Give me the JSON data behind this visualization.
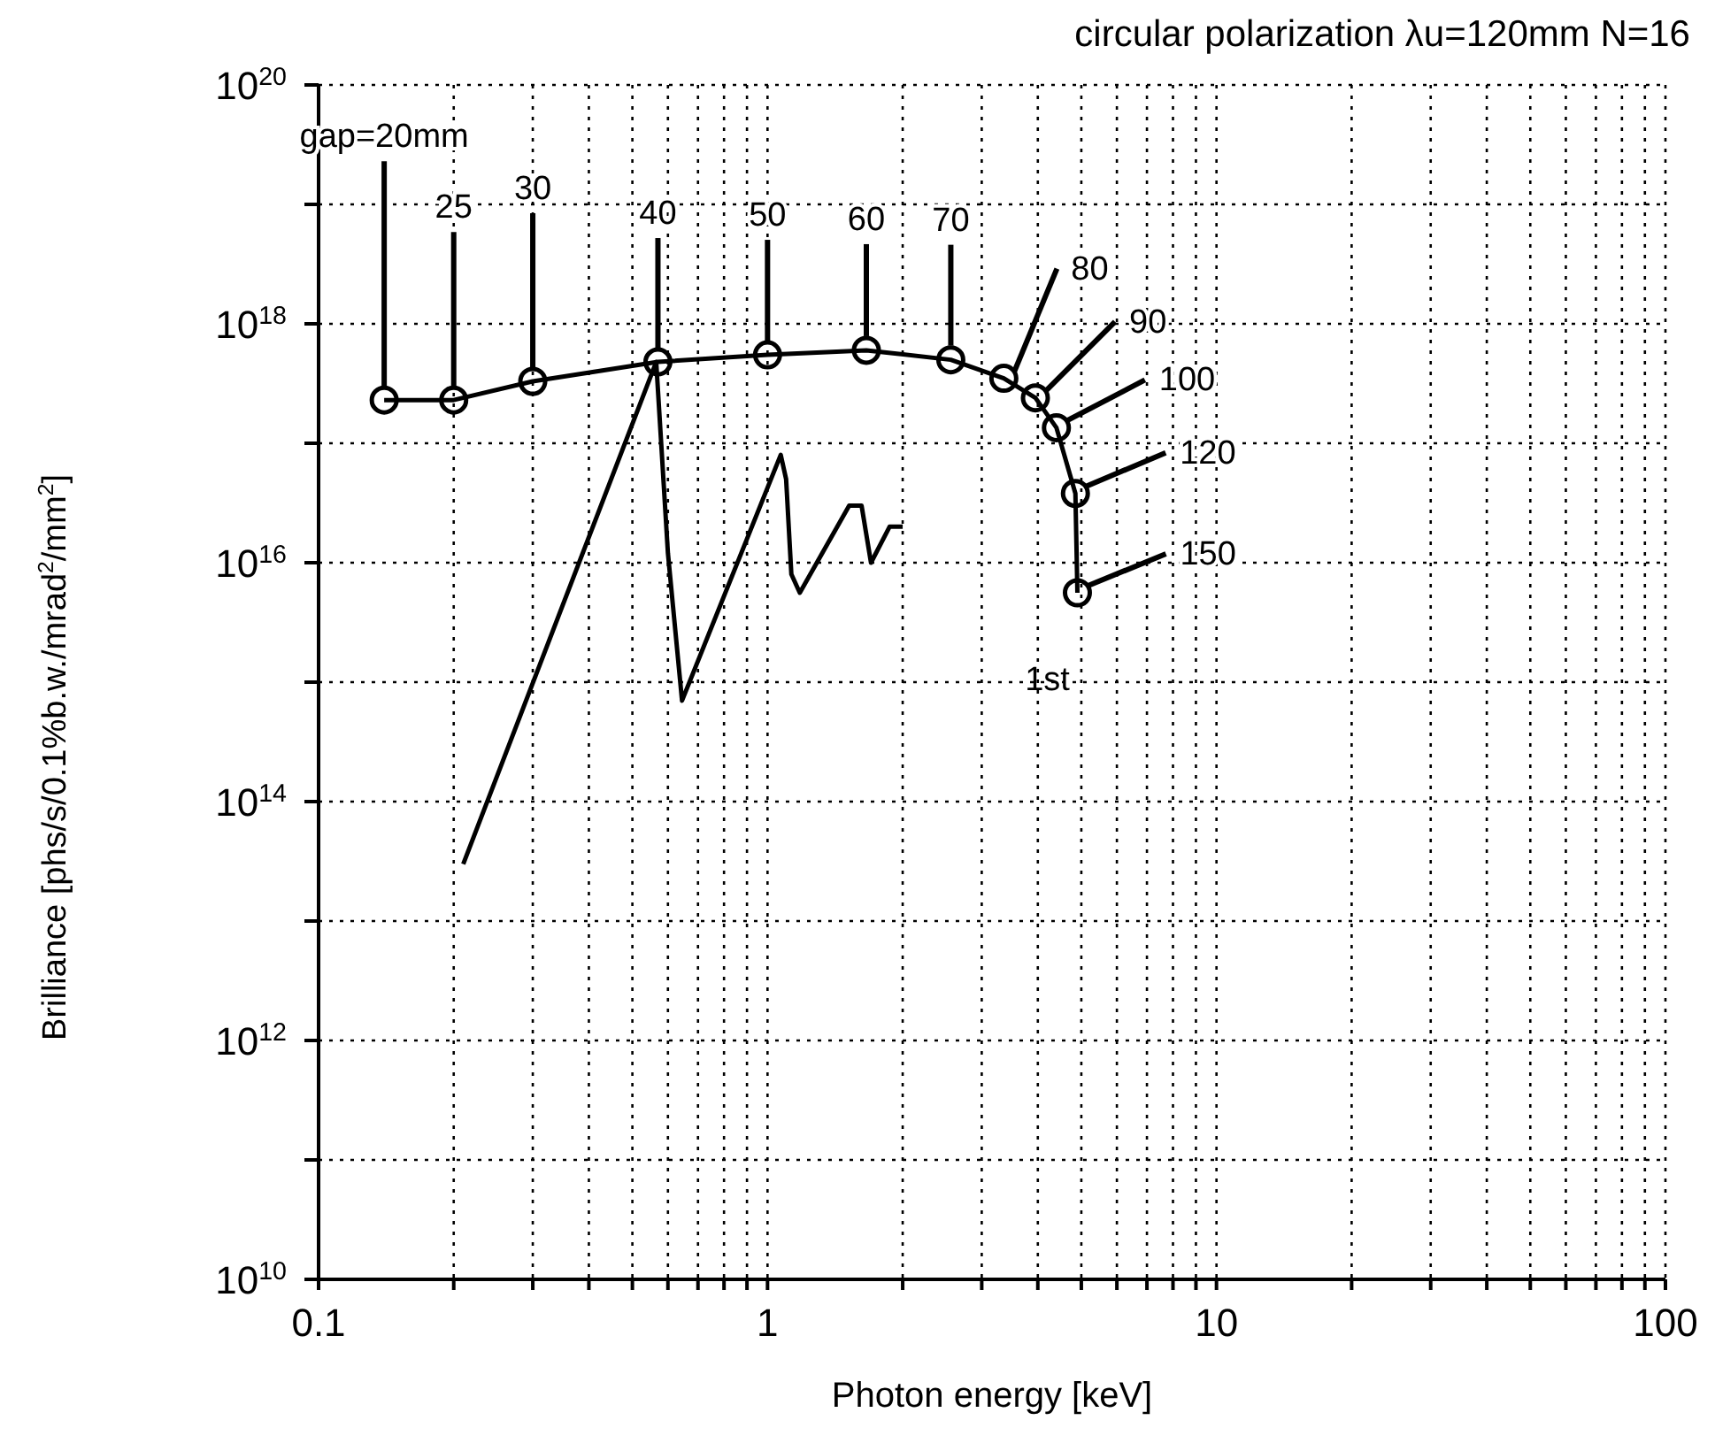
{
  "chart_data": {
    "type": "line",
    "title": "circular polarization λu=120mm N=16",
    "xlabel": "Photon energy  [keV]",
    "ylabel": "Brilliance [phs/s/0.1%b.w./mrad$^{2}$/mm$^{2}$]",
    "log": "xy",
    "grid": true,
    "line_style": "solid",
    "xlim": [
      0.1,
      100
    ],
    "ylim": [
      10000000000.0,
      1e+20
    ],
    "xticks": [
      0.1,
      {
        "value": 0.2,
        "label": null
      },
      {
        "value": 0.3,
        "label": null
      },
      {
        "value": 0.4,
        "label": null
      },
      {
        "value": 0.5,
        "label": null
      },
      {
        "value": 0.6,
        "label": null
      },
      {
        "value": 0.7,
        "label": null
      },
      {
        "value": 0.8,
        "label": null
      },
      {
        "value": 0.9,
        "label": null
      },
      1,
      {
        "value": 2,
        "label": null
      },
      {
        "value": 3,
        "label": null
      },
      {
        "value": 4,
        "label": null
      },
      {
        "value": 5,
        "label": null
      },
      {
        "value": 6,
        "label": null
      },
      {
        "value": 7,
        "label": null
      },
      {
        "value": 8,
        "label": null
      },
      {
        "value": 9,
        "label": null
      },
      10,
      {
        "value": 20,
        "label": null
      },
      {
        "value": 30,
        "label": null
      },
      {
        "value": 40,
        "label": null
      },
      {
        "value": 50,
        "label": null
      },
      {
        "value": 60,
        "label": null
      },
      {
        "value": 70,
        "label": null
      },
      {
        "value": 80,
        "label": null
      },
      {
        "value": 90,
        "label": null
      },
      100
    ],
    "yticks": [
      {
        "value": 10000000000.0,
        "label": "10$^{10}$"
      },
      {
        "value": 100000000000.0,
        "label": null
      },
      {
        "value": 1000000000000.0,
        "label": "10$^{12}$"
      },
      {
        "value": 10000000000000.0,
        "label": null
      },
      {
        "value": 100000000000000.0,
        "label": "10$^{14}$"
      },
      {
        "value": 1000000000000000.0,
        "label": null
      },
      {
        "value": 1e+16,
        "label": "10$^{16}$"
      },
      {
        "value": 1e+17,
        "label": null
      },
      {
        "value": 1e+18,
        "label": "10$^{18}$"
      },
      {
        "value": 1e+19,
        "label": null
      },
      {
        "value": 1e+20,
        "label": "10$^{20}$"
      }
    ],
    "series": [
      {
        "name": "1st",
        "color": "#000000",
        "marker": "circle",
        "x": [
          0.14,
          0.2,
          0.3,
          0.57,
          1.0,
          1.66,
          2.56,
          3.36,
          3.95,
          4.4,
          4.85,
          4.9
        ],
        "values": [
          2.3e+17,
          2.3e+17,
          3.3e+17,
          4.8e+17,
          5.5e+17,
          6e+17,
          5e+17,
          3.5e+17,
          2.4e+17,
          1.35e+17,
          3.8e+16,
          5600000000000000.0
        ]
      },
      {
        "color": "#000000",
        "marker": "none",
        "x": [
          0.21,
          0.565,
          0.6,
          0.645,
          1.07,
          1.1,
          1.13,
          1.18,
          1.52,
          1.62,
          1.7,
          1.87,
          2.0
        ],
        "values": [
          30000000000000.0,
          4.8e+17,
          1.2e+16,
          700000000000000.0,
          8e+16,
          5e+16,
          8000000000000000.0,
          5600000000000000.0,
          3e+16,
          3e+16,
          1e+16,
          2e+16,
          2e+16
        ]
      }
    ],
    "annotations": [
      {
        "text": "gap=20mm",
        "x": 0.14,
        "y": 2.3e+17
      },
      {
        "text": "25",
        "x": 0.2,
        "y": 2.3e+17
      },
      {
        "text": "30",
        "x": 0.3,
        "y": 3.3e+17
      },
      {
        "text": "40",
        "x": 0.57,
        "y": 4.8e+17
      },
      {
        "text": "50",
        "x": 1.0,
        "y": 5.5e+17
      },
      {
        "text": "60",
        "x": 1.66,
        "y": 6e+17
      },
      {
        "text": "70",
        "x": 2.56,
        "y": 5e+17
      },
      {
        "text": "80",
        "x": 3.36,
        "y": 3.5e+17
      },
      {
        "text": "90",
        "x": 3.95,
        "y": 2.4e+17
      },
      {
        "text": "100",
        "x": 4.4,
        "y": 1.35e+17
      },
      {
        "text": "120",
        "x": 4.85,
        "y": 3.8e+16
      },
      {
        "text": "150",
        "x": 4.9,
        "y": 5600000000000000.0
      }
    ]
  }
}
